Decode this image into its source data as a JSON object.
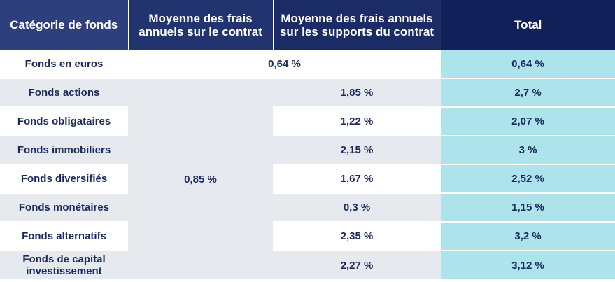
{
  "headers": {
    "category": "Catégorie de fonds",
    "contract_fees": "Moyenne des frais annuels sur le contrat",
    "support_fees": "Moyenne des frais annuels sur les supports du contrat",
    "total": "Total"
  },
  "euro_row": {
    "category": "Fonds en euros",
    "merged_value": "0,64 %",
    "total": "0,64 %"
  },
  "contract_fee_merged": "0,85 %",
  "rows": [
    {
      "category": "Fonds actions",
      "support": "1,85 %",
      "total": "2,7 %"
    },
    {
      "category": "Fonds obligataires",
      "support": "1,22 %",
      "total": "2,07 %"
    },
    {
      "category": "Fonds immobiliers",
      "support": "2,15 %",
      "total": "3 %"
    },
    {
      "category": "Fonds diversifiés",
      "support": "1,67 %",
      "total": "2,52 %"
    },
    {
      "category": "Fonds monétaires",
      "support": "0,3 %",
      "total": "1,15 %"
    },
    {
      "category": "Fonds alternatifs",
      "support": "2,35 %",
      "total": "3,2 %"
    },
    {
      "category": "Fonds de capital investissement",
      "support": "2,27 %",
      "total": "3,12 %"
    }
  ],
  "colors": {
    "header_dark": "#12205a",
    "header_light": "#2d3f7c",
    "text": "#1b2a5e",
    "row_alt": "#e6e9ee",
    "total_col": "#ade3ea"
  }
}
